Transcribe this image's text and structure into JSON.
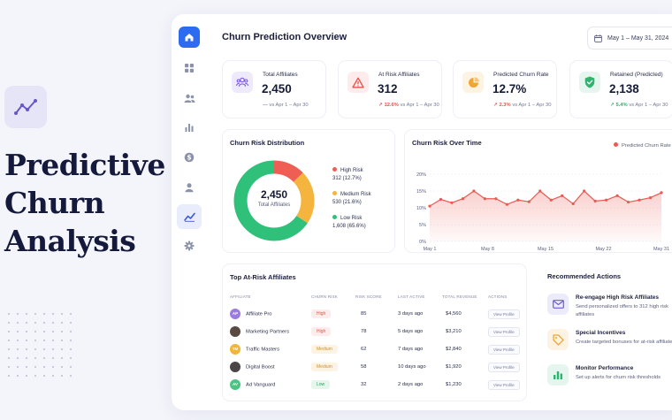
{
  "hero": {
    "title_lines": [
      "Predictive",
      "Churn",
      "Analysis"
    ]
  },
  "header": {
    "title": "Churn Prediction Overview",
    "date_range": "May 1 – May 31, 2024"
  },
  "sidebar": {
    "items": [
      "home",
      "dashboard",
      "users",
      "analytics",
      "revenue",
      "profile",
      "trends",
      "settings"
    ]
  },
  "kpis": [
    {
      "label": "Total Affiliates",
      "value": "2,450",
      "change": "—",
      "compare": "vs Apr 1 – Apr 30",
      "icon": "users-icon",
      "color": "#7c5cd6",
      "bg": "#efeafb",
      "change_color": "#8a8fa8"
    },
    {
      "label": "At Risk Affiliates",
      "value": "312",
      "change": "↗ 12.6%",
      "compare": "vs Apr 1 – Apr 30",
      "icon": "warning-icon",
      "color": "#e5534b",
      "bg": "#fdeceb",
      "change_color": "#e5534b"
    },
    {
      "label": "Predicted Churn Rate",
      "value": "12.7%",
      "change": "↗ 2.3%",
      "compare": "vs Apr 1 – Apr 30",
      "icon": "pie-chart-icon",
      "color": "#f0a535",
      "bg": "#fdf3e3",
      "change_color": "#e5534b"
    },
    {
      "label": "Retained (Predicted)",
      "value": "2,138",
      "change": "↗ 5.4%",
      "compare": "vs Apr 1 – Apr 30",
      "icon": "shield-check-icon",
      "color": "#2fb36d",
      "bg": "#e6f6ee",
      "change_color": "#2fb36d"
    }
  ],
  "distribution": {
    "title": "Churn Risk Distribution",
    "center_value": "2,450",
    "center_label": "Total Affiliates",
    "segments": [
      {
        "name": "High Risk",
        "detail": "312 (12.7%)",
        "value": 12.7,
        "color": "#ee5e55"
      },
      {
        "name": "Medium Risk",
        "detail": "530 (21.6%)",
        "value": 21.6,
        "color": "#f5b43e"
      },
      {
        "name": "Low Risk",
        "detail": "1,608 (65.6%)",
        "value": 65.6,
        "color": "#2fc07a"
      }
    ]
  },
  "chart_data": {
    "type": "area",
    "title": "Churn Risk Over Time",
    "series": [
      {
        "name": "Predicted Churn Rate",
        "values": [
          10.5,
          12.5,
          11.5,
          12.7,
          15.0,
          12.7,
          12.7,
          11.0,
          12.3,
          11.8,
          15.0,
          12.3,
          13.6,
          11.2,
          15.0,
          12.0,
          12.3,
          13.6,
          11.7,
          12.3,
          13.0,
          14.5
        ]
      }
    ],
    "x_ticks": [
      "May 1",
      "May 8",
      "May 15",
      "May 22",
      "May 31"
    ],
    "y_ticks": [
      "20%",
      "15%",
      "10%",
      "5%",
      "0%"
    ],
    "ylim": [
      0,
      20
    ],
    "grid": true,
    "legend": "top-right",
    "color": "#ea5a52"
  },
  "table": {
    "title": "Top At-Risk Affiliates",
    "columns": [
      "AFFILIATE",
      "CHURN RISK",
      "RISK SCORE",
      "LAST ACTIVE",
      "TOTAL REVENUE",
      "ACTIONS"
    ],
    "action_label": "View Profile",
    "rows": [
      {
        "initials": "AP",
        "name": "Affiliate Pro",
        "risk": "High",
        "score": "85",
        "last_active": "3 days ago",
        "revenue": "$4,560",
        "avatar_color": "#9b7be0",
        "risk_color": "#e5534b",
        "risk_bg": "#fdecec"
      },
      {
        "initials": "",
        "name": "Marketing Partners",
        "risk": "High",
        "score": "78",
        "last_active": "5 days ago",
        "revenue": "$3,210",
        "avatar_color": "#5b4a42",
        "risk_color": "#e5534b",
        "risk_bg": "#fdecec"
      },
      {
        "initials": "TM",
        "name": "Traffic Masters",
        "risk": "Medium",
        "score": "62",
        "last_active": "7 days ago",
        "revenue": "$2,840",
        "avatar_color": "#f2b43c",
        "risk_color": "#d8901c",
        "risk_bg": "#fdf3e2"
      },
      {
        "initials": "",
        "name": "Digital Boost",
        "risk": "Medium",
        "score": "58",
        "last_active": "10 days ago",
        "revenue": "$1,920",
        "avatar_color": "#4b4548",
        "risk_color": "#d8901c",
        "risk_bg": "#fdf3e2"
      },
      {
        "initials": "AV",
        "name": "Ad Vanguard",
        "risk": "Low",
        "score": "32",
        "last_active": "2 days ago",
        "revenue": "$1,230",
        "avatar_color": "#4cc283",
        "risk_color": "#2b9f5d",
        "risk_bg": "#e5f6ec"
      }
    ]
  },
  "actions": {
    "title": "Recommended Actions",
    "items": [
      {
        "title": "Re-engage High Risk Affiliates",
        "desc": "Send personalized offers to 312 high risk affiliates",
        "icon": "mail-icon",
        "color": "#6d5bd0",
        "bg": "#ecebfb"
      },
      {
        "title": "Special Incentives",
        "desc": "Create targeted bonuses for at-risk affiliates",
        "icon": "tag-icon",
        "color": "#f0a535",
        "bg": "#fdf3e3"
      },
      {
        "title": "Monitor Performance",
        "desc": "Set up alerts for churn risk thresholds",
        "icon": "bar-chart-icon",
        "color": "#2fb36d",
        "bg": "#e6f6ee"
      }
    ]
  }
}
